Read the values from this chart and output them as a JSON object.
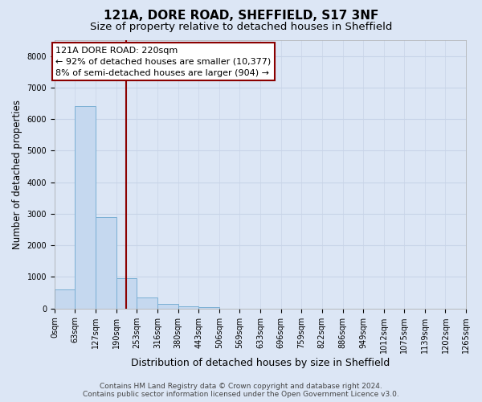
{
  "title": "121A, DORE ROAD, SHEFFIELD, S17 3NF",
  "subtitle": "Size of property relative to detached houses in Sheffield",
  "xlabel": "Distribution of detached houses by size in Sheffield",
  "ylabel": "Number of detached properties",
  "bin_edges": [
    0,
    63,
    127,
    190,
    253,
    316,
    380,
    443,
    506,
    569,
    633,
    696,
    759,
    822,
    886,
    949,
    1012,
    1075,
    1139,
    1202,
    1265
  ],
  "bar_heights": [
    600,
    6400,
    2900,
    950,
    350,
    150,
    80,
    50,
    0,
    0,
    0,
    0,
    0,
    0,
    0,
    0,
    0,
    0,
    0,
    0
  ],
  "bar_color": "#c5d8ef",
  "bar_edgecolor": "#7aafd4",
  "vline_x": 220,
  "vline_color": "#8b0000",
  "ylim_max": 8500,
  "yticks": [
    0,
    1000,
    2000,
    3000,
    4000,
    5000,
    6000,
    7000,
    8000
  ],
  "annotation_line1": "121A DORE ROAD: 220sqm",
  "annotation_line2": "← 92% of detached houses are smaller (10,377)",
  "annotation_line3": "8% of semi-detached houses are larger (904) →",
  "annotation_box_color": "#8b0000",
  "annotation_bg": "#ffffff",
  "grid_color": "#c8d4e8",
  "background_color": "#dce6f5",
  "footer_line1": "Contains HM Land Registry data © Crown copyright and database right 2024.",
  "footer_line2": "Contains public sector information licensed under the Open Government Licence v3.0.",
  "title_fontsize": 11,
  "subtitle_fontsize": 9.5,
  "tick_label_fontsize": 7,
  "ylabel_fontsize": 8.5,
  "xlabel_fontsize": 9,
  "footer_fontsize": 6.5,
  "annotation_fontsize": 8
}
